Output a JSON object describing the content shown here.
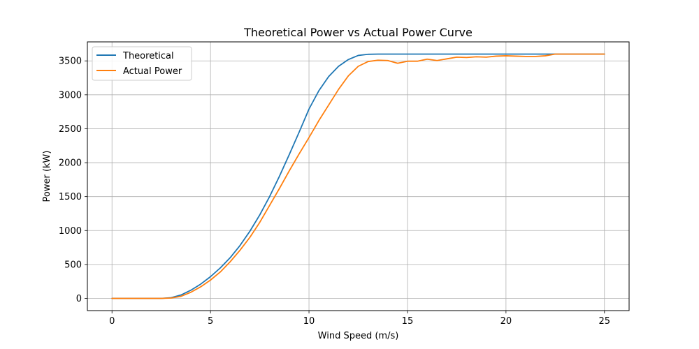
{
  "chart_data": {
    "type": "line",
    "title": "Theoretical Power vs Actual Power Curve",
    "xlabel": "Wind Speed (m/s)",
    "ylabel": "Power (kW)",
    "xlim": [
      -1.25,
      26.25
    ],
    "ylim": [
      -180,
      3780
    ],
    "xticks": [
      0,
      5,
      10,
      15,
      20,
      25
    ],
    "yticks": [
      0,
      500,
      1000,
      1500,
      2000,
      2500,
      3000,
      3500
    ],
    "grid": true,
    "legend_position": "top-left",
    "series": [
      {
        "name": "Theoretical",
        "color": "#1f77b4",
        "x": [
          0,
          0.5,
          1,
          1.5,
          2,
          2.5,
          3,
          3.5,
          4,
          4.5,
          5,
          5.5,
          6,
          6.5,
          7,
          7.5,
          8,
          8.5,
          9,
          9.5,
          10,
          10.5,
          11,
          11.5,
          12,
          12.5,
          13,
          13.5,
          14,
          14.5,
          15,
          15.5,
          16,
          16.5,
          17,
          17.5,
          18,
          18.5,
          19,
          19.5,
          20,
          20.5,
          21,
          21.5,
          22,
          22.5,
          23,
          23.5,
          24,
          24.5,
          25
        ],
        "values": [
          0,
          0,
          0,
          0,
          0,
          0,
          10,
          50,
          120,
          210,
          320,
          450,
          600,
          780,
          990,
          1230,
          1500,
          1800,
          2120,
          2450,
          2790,
          3060,
          3270,
          3420,
          3520,
          3580,
          3597,
          3600,
          3600,
          3600,
          3600,
          3600,
          3600,
          3600,
          3600,
          3600,
          3600,
          3600,
          3600,
          3600,
          3600,
          3600,
          3600,
          3600,
          3600,
          3600,
          3600,
          3600,
          3600,
          3600,
          3600
        ]
      },
      {
        "name": "Actual Power",
        "color": "#ff7f0e",
        "x": [
          0,
          0.5,
          1,
          1.5,
          2,
          2.5,
          3,
          3.5,
          4,
          4.5,
          5,
          5.5,
          6,
          6.5,
          7,
          7.5,
          8,
          8.5,
          9,
          9.5,
          10,
          10.5,
          11,
          11.5,
          12,
          12.5,
          13,
          13.5,
          14,
          14.5,
          15,
          15.5,
          16,
          16.5,
          17,
          17.5,
          18,
          18.5,
          19,
          19.5,
          20,
          20.5,
          21,
          21.5,
          22,
          22.5,
          23,
          23.5,
          24,
          24.5,
          25
        ],
        "values": [
          0,
          0,
          0,
          0,
          0,
          0,
          5,
          30,
          90,
          170,
          270,
          390,
          540,
          710,
          900,
          1120,
          1370,
          1620,
          1880,
          2130,
          2370,
          2620,
          2850,
          3080,
          3280,
          3420,
          3490,
          3510,
          3505,
          3465,
          3495,
          3495,
          3525,
          3505,
          3530,
          3555,
          3550,
          3560,
          3555,
          3570,
          3575,
          3570,
          3565,
          3565,
          3575,
          3600,
          3600,
          3600,
          3600,
          3600,
          3600
        ]
      }
    ]
  }
}
